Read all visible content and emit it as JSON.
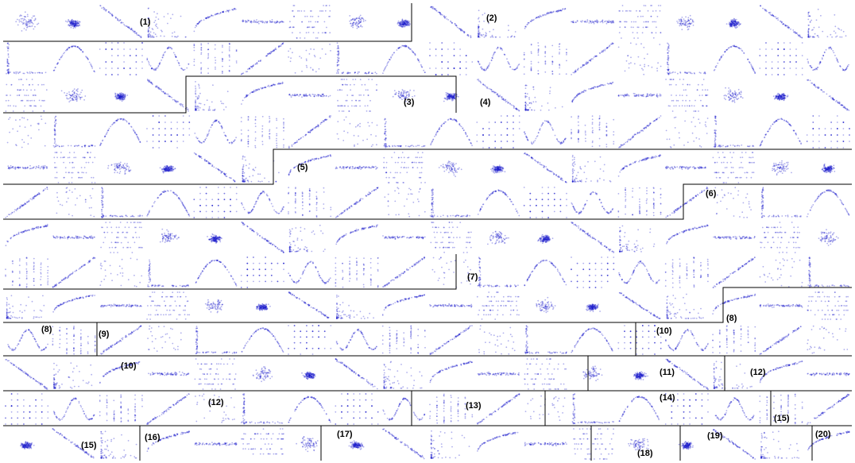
{
  "chart_data": {
    "type": "scatter",
    "title": "",
    "xlabel": "",
    "ylabel": "",
    "axes_shown": false,
    "grid": false,
    "point_color": "#1a1acc",
    "boundary_color": "#000000",
    "groups": [
      {
        "label": "(1)"
      },
      {
        "label": "(2)"
      },
      {
        "label": "(3)"
      },
      {
        "label": "(4)"
      },
      {
        "label": "(5)"
      },
      {
        "label": "(6)"
      },
      {
        "label": "(7)"
      },
      {
        "label": "(8)"
      },
      {
        "label": "(8)"
      },
      {
        "label": "(9)"
      },
      {
        "label": "(10)"
      },
      {
        "label": "(10)"
      },
      {
        "label": "(11)"
      },
      {
        "label": "(12)"
      },
      {
        "label": "(12)"
      },
      {
        "label": "(13)"
      },
      {
        "label": "(14)"
      },
      {
        "label": "(15)"
      },
      {
        "label": "(15)"
      },
      {
        "label": "(16)"
      },
      {
        "label": "(17)"
      },
      {
        "label": "(18)"
      },
      {
        "label": "(19)"
      },
      {
        "label": "(20)"
      }
    ]
  }
}
